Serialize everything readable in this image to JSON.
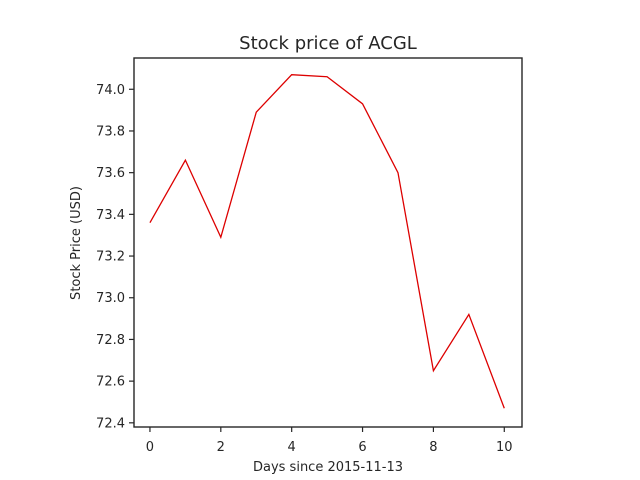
{
  "chart_data": {
    "type": "line",
    "title": "Stock price of ACGL",
    "xlabel": "Days since 2015-11-13",
    "ylabel": "Stock Price (USD)",
    "x": [
      0,
      1,
      2,
      3,
      4,
      5,
      6,
      7,
      8,
      9,
      10
    ],
    "series": [
      {
        "values": [
          73.36,
          73.66,
          73.29,
          73.89,
          74.07,
          74.06,
          73.93,
          73.6,
          72.65,
          72.92,
          72.47
        ],
        "color": "#dd0000"
      }
    ],
    "xticks": [
      0,
      2,
      4,
      6,
      8,
      10
    ],
    "yticks": [
      72.4,
      72.6,
      72.8,
      73.0,
      73.2,
      73.4,
      73.6,
      73.8,
      74.0
    ],
    "xlim": [
      -0.45,
      10.5
    ],
    "ylim": [
      72.38,
      74.15
    ],
    "grid": false,
    "legend": "none"
  }
}
